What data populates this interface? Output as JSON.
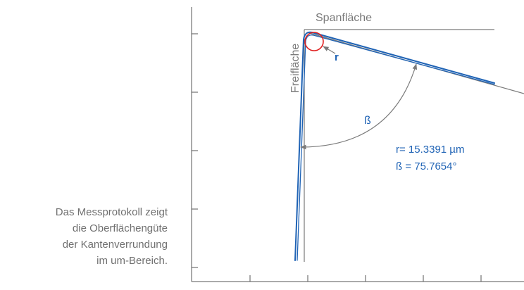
{
  "caption": {
    "lines": [
      "Das Messprotokoll zeigt",
      "die Oberflächengüte",
      "der Kantenverrundung",
      "im um-Bereich."
    ]
  },
  "labels": {
    "top_face": "Spanfläche",
    "side_face": "Freifläche",
    "radius_symbol": "r",
    "angle_symbol": "ß"
  },
  "measurements": {
    "radius": "r= 15.3391 µm",
    "angle": "ß = 75.7654°"
  },
  "colors": {
    "profile": "#1f63b5",
    "reference": "#7a7a7a",
    "radius_marker": "#e02020",
    "axis": "#555555"
  }
}
